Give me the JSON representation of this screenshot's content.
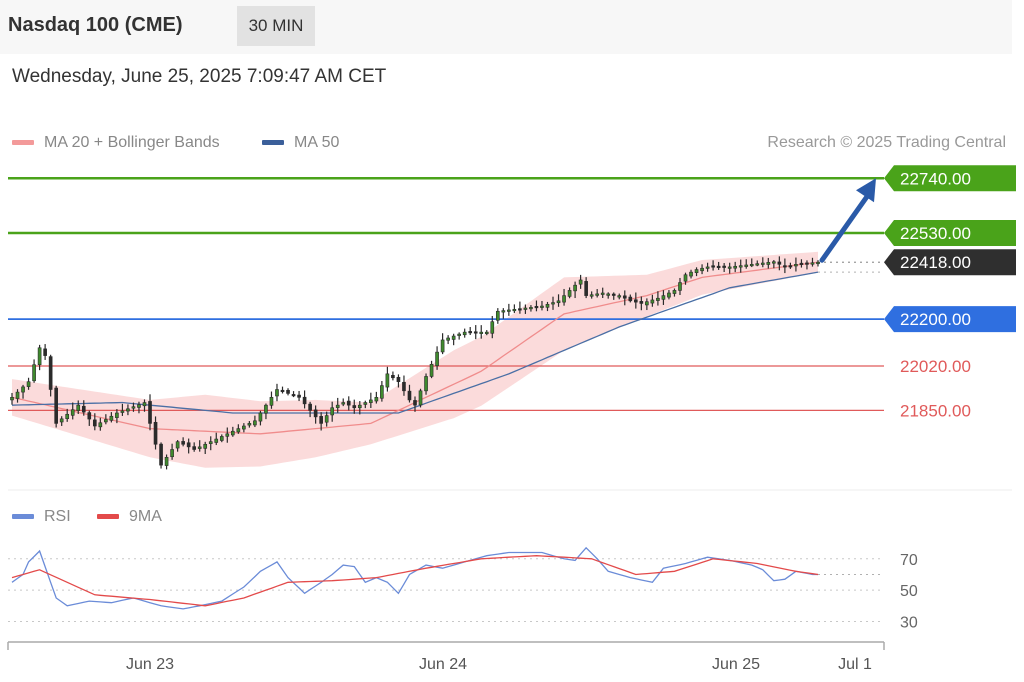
{
  "header": {
    "title": "Nasdaq 100 (CME)",
    "interval": "30 MIN"
  },
  "timestamp": "Wednesday, June 25, 2025 7:09:47 AM CET",
  "credit": "Research © 2025 Trading Central",
  "colors": {
    "resistance": "#4aa31a",
    "support": "#e05a5a",
    "pivot": "#2f6fe0",
    "last": "#2f2f2f",
    "candle_up": "#3f8a2e",
    "candle_down": "#2b2b2b",
    "band": "#f9cfcf",
    "ma20": "#f08c8c",
    "ma50": "#4a6fa5",
    "rsi": "#6b8cd8",
    "rsi_ma": "#e34a4a",
    "arrow": "#2a5aa8"
  },
  "chart_data": [
    {
      "type": "candlestick",
      "legend": [
        {
          "name": "MA 20 + Bollinger Bands",
          "color": "#f39a9a"
        },
        {
          "name": "MA 50",
          "color": "#3b5f9a"
        }
      ],
      "ylim": [
        21560,
        22810
      ],
      "x_ticks": [
        "Jun 23",
        "Jun 24",
        "Jun 25",
        "Jul 1"
      ],
      "levels": [
        {
          "value": 22740,
          "label": "22740.00",
          "kind": "resistance"
        },
        {
          "value": 22530,
          "label": "22530.00",
          "kind": "resistance"
        },
        {
          "value": 22418,
          "label": "22418.00",
          "kind": "last"
        },
        {
          "value": 22200,
          "label": "22200.00",
          "kind": "pivot"
        },
        {
          "value": 22020,
          "label": "22020.00",
          "kind": "support"
        },
        {
          "value": 21850,
          "label": "21850.00",
          "kind": "support"
        }
      ],
      "projection": {
        "from": 22418,
        "to": 22740,
        "direction": "up"
      },
      "anchors": [
        [
          0,
          21900
        ],
        [
          3,
          21960
        ],
        [
          5,
          22090
        ],
        [
          6,
          22060
        ],
        [
          8,
          21800
        ],
        [
          12,
          21870
        ],
        [
          15,
          21790
        ],
        [
          19,
          21840
        ],
        [
          24,
          21880
        ],
        [
          27,
          21640
        ],
        [
          30,
          21730
        ],
        [
          33,
          21700
        ],
        [
          37,
          21740
        ],
        [
          41,
          21780
        ],
        [
          44,
          21810
        ],
        [
          48,
          21930
        ],
        [
          52,
          21900
        ],
        [
          54,
          21850
        ],
        [
          56,
          21800
        ],
        [
          58,
          21860
        ],
        [
          60,
          21880
        ],
        [
          62,
          21860
        ],
        [
          66,
          21900
        ],
        [
          68,
          21990
        ],
        [
          70,
          21960
        ],
        [
          72,
          21890
        ],
        [
          73,
          21870
        ],
        [
          75,
          21980
        ],
        [
          78,
          22120
        ],
        [
          82,
          22150
        ],
        [
          86,
          22150
        ],
        [
          88,
          22230
        ],
        [
          92,
          22240
        ],
        [
          96,
          22250
        ],
        [
          99,
          22270
        ],
        [
          101,
          22310
        ],
        [
          103,
          22350
        ],
        [
          104,
          22290
        ],
        [
          107,
          22300
        ],
        [
          110,
          22290
        ],
        [
          112,
          22270
        ],
        [
          114,
          22260
        ],
        [
          117,
          22280
        ],
        [
          120,
          22310
        ],
        [
          122,
          22370
        ],
        [
          124,
          22390
        ],
        [
          126,
          22400
        ],
        [
          130,
          22400
        ],
        [
          134,
          22410
        ],
        [
          138,
          22420
        ],
        [
          140,
          22400
        ],
        [
          142,
          22410
        ],
        [
          146,
          22418
        ]
      ],
      "ma20": [
        [
          0,
          21900
        ],
        [
          25,
          21780
        ],
        [
          45,
          21760
        ],
        [
          65,
          21800
        ],
        [
          85,
          22000
        ],
        [
          100,
          22220
        ],
        [
          115,
          22290
        ],
        [
          125,
          22360
        ],
        [
          146,
          22418
        ]
      ],
      "ma50": [
        [
          0,
          21870
        ],
        [
          20,
          21880
        ],
        [
          40,
          21840
        ],
        [
          70,
          21840
        ],
        [
          90,
          21990
        ],
        [
          110,
          22170
        ],
        [
          130,
          22320
        ],
        [
          146,
          22380
        ]
      ],
      "band_width": [
        [
          0,
          70
        ],
        [
          25,
          110
        ],
        [
          35,
          140
        ],
        [
          55,
          110
        ],
        [
          65,
          80
        ],
        [
          80,
          130
        ],
        [
          100,
          140
        ],
        [
          115,
          80
        ],
        [
          130,
          60
        ],
        [
          146,
          40
        ]
      ]
    },
    {
      "type": "line",
      "legend": [
        {
          "name": "RSI",
          "color": "#6b8cd8"
        },
        {
          "name": "9MA",
          "color": "#e34a4a"
        }
      ],
      "ylim": [
        22,
        82
      ],
      "y_ticks": [
        70,
        50,
        30
      ],
      "rsi": [
        [
          0,
          55
        ],
        [
          2,
          60
        ],
        [
          3,
          68
        ],
        [
          5,
          75
        ],
        [
          6,
          65
        ],
        [
          8,
          45
        ],
        [
          10,
          40
        ],
        [
          14,
          43
        ],
        [
          18,
          42
        ],
        [
          22,
          45
        ],
        [
          27,
          40
        ],
        [
          31,
          38
        ],
        [
          34,
          40
        ],
        [
          38,
          43
        ],
        [
          42,
          52
        ],
        [
          45,
          62
        ],
        [
          48,
          68
        ],
        [
          50,
          58
        ],
        [
          53,
          48
        ],
        [
          56,
          55
        ],
        [
          58,
          60
        ],
        [
          60,
          66
        ],
        [
          62,
          65
        ],
        [
          64,
          55
        ],
        [
          66,
          58
        ],
        [
          68,
          55
        ],
        [
          70,
          48
        ],
        [
          72,
          60
        ],
        [
          75,
          66
        ],
        [
          78,
          64
        ],
        [
          82,
          68
        ],
        [
          86,
          72
        ],
        [
          90,
          74
        ],
        [
          96,
          74
        ],
        [
          100,
          70
        ],
        [
          102,
          69
        ],
        [
          104,
          77
        ],
        [
          106,
          70
        ],
        [
          108,
          62
        ],
        [
          112,
          58
        ],
        [
          116,
          55
        ],
        [
          118,
          64
        ],
        [
          122,
          67
        ],
        [
          126,
          71
        ],
        [
          130,
          69
        ],
        [
          134,
          66
        ],
        [
          136,
          63
        ],
        [
          138,
          56
        ],
        [
          140,
          57
        ],
        [
          142,
          62
        ],
        [
          145,
          60
        ],
        [
          146,
          60
        ]
      ],
      "rsi_ma": [
        [
          0,
          58
        ],
        [
          5,
          63
        ],
        [
          10,
          55
        ],
        [
          15,
          47
        ],
        [
          25,
          44
        ],
        [
          35,
          40
        ],
        [
          42,
          45
        ],
        [
          50,
          55
        ],
        [
          58,
          56
        ],
        [
          66,
          58
        ],
        [
          75,
          64
        ],
        [
          85,
          70
        ],
        [
          95,
          72
        ],
        [
          105,
          70
        ],
        [
          113,
          60
        ],
        [
          120,
          62
        ],
        [
          127,
          70
        ],
        [
          135,
          67
        ],
        [
          142,
          62
        ],
        [
          146,
          60
        ]
      ]
    }
  ]
}
